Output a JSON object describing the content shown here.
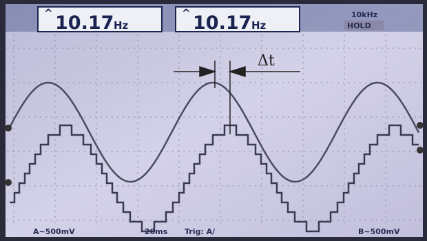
{
  "readouts": [
    {
      "value": "10.17",
      "unit": "Hz"
    },
    {
      "value": "10.17",
      "unit": "Hz"
    }
  ],
  "status": {
    "range": "10kHz",
    "hold": "HOLD"
  },
  "cursor_label": "Δt",
  "footer": [
    "A~500mV",
    "20ms",
    "Trig: A/",
    "B~500mV"
  ]
}
